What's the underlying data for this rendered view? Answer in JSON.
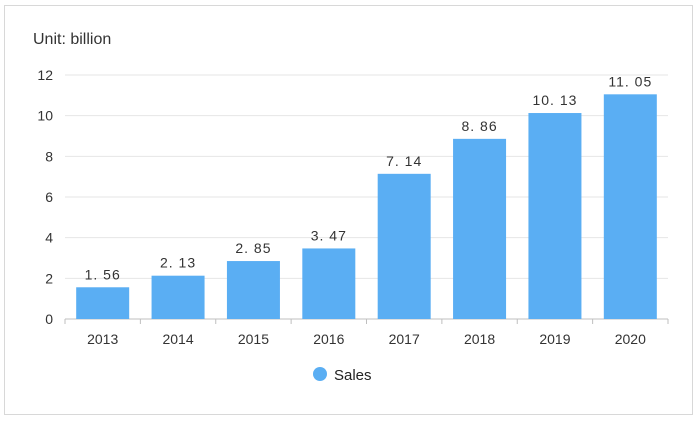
{
  "unit_label": "Unit: billion",
  "colors": {
    "bar": "#5aaef3",
    "grid": "#e6e6e6",
    "axis": "#bfbfbf"
  },
  "chart_data": {
    "type": "bar",
    "categories": [
      "2013",
      "2014",
      "2015",
      "2016",
      "2017",
      "2018",
      "2019",
      "2020"
    ],
    "series": [
      {
        "name": "Sales",
        "values": [
          1.56,
          2.13,
          2.85,
          3.47,
          7.14,
          8.86,
          10.13,
          11.05
        ]
      }
    ],
    "data_labels": [
      "1. 56",
      "2. 13",
      "2. 85",
      "3. 47",
      "7. 14",
      "8. 86",
      "10. 13",
      "11. 05"
    ],
    "ylim": [
      0,
      12
    ],
    "yticks": [
      0,
      2,
      4,
      6,
      8,
      10,
      12
    ],
    "grid": true,
    "legend_position": "bottom-center"
  }
}
